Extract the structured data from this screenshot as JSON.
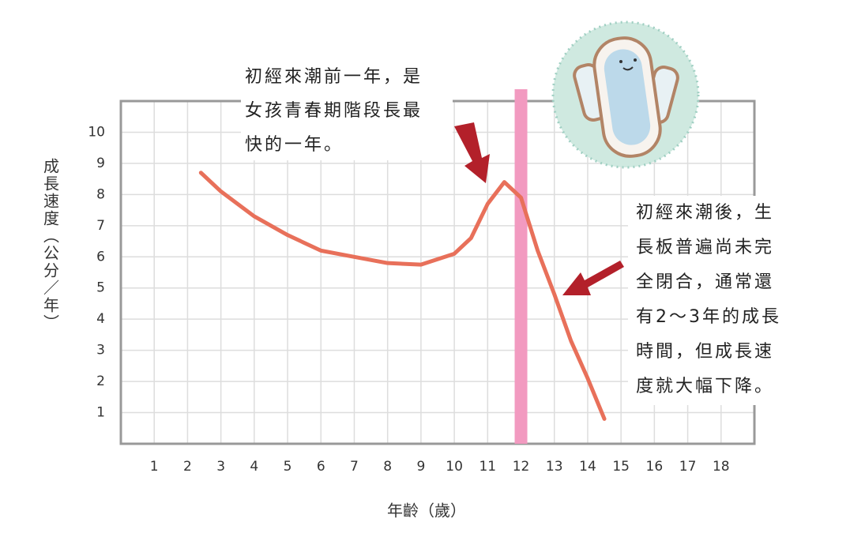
{
  "chart_data": {
    "type": "line",
    "x": [
      2.4,
      3,
      4,
      5,
      6,
      7,
      8,
      9,
      10,
      10.5,
      11,
      11.5,
      12,
      12.5,
      13,
      13.5,
      14,
      14.5
    ],
    "values": [
      8.7,
      8.1,
      7.3,
      6.7,
      6.2,
      6.0,
      5.8,
      5.75,
      6.1,
      6.6,
      7.7,
      8.4,
      7.9,
      6.2,
      4.8,
      3.3,
      2.1,
      0.8
    ],
    "color": "#e8705a",
    "xlim": [
      0,
      19
    ],
    "xticks": [
      1,
      2,
      3,
      4,
      5,
      6,
      7,
      8,
      9,
      10,
      11,
      12,
      13,
      14,
      15,
      16,
      17,
      18
    ],
    "ylim": [
      0,
      11
    ],
    "yticks": [
      1,
      2,
      3,
      4,
      5,
      6,
      7,
      8,
      9,
      10
    ],
    "grid": true,
    "highlight_x": 12,
    "highlight_color": "#f29ac0",
    "x_label": "年齡（歲）",
    "y_label": "成長速度（公分／年）",
    "annotations": [
      {
        "lines": [
          "初經來潮前一年，是",
          "女孩青春期階段長最",
          "快的一年。"
        ]
      },
      {
        "lines": [
          "初經來潮後，生",
          "長板普遍尚未完",
          "全閉合，通常還",
          "有2～3年的成長",
          "時間，但成長速",
          "度就大幅下降。"
        ]
      }
    ]
  }
}
